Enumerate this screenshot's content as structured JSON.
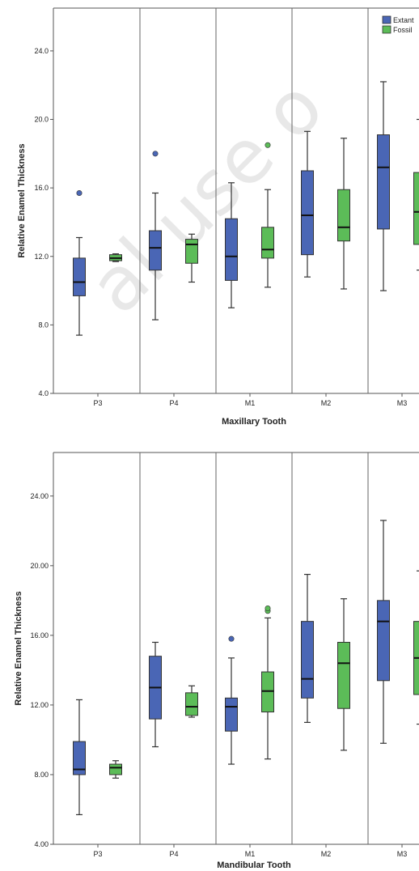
{
  "watermark_text": "al use o",
  "legend": [
    {
      "label": "Extant",
      "color": "#4a66b5"
    },
    {
      "label": "Fossil",
      "color": "#5cbc58"
    }
  ],
  "chart_data": [
    {
      "type": "box",
      "xlabel": "Maxillary Tooth",
      "ylabel": "Relative Enamel Thickness",
      "ylim": [
        4,
        26.5
      ],
      "yticks": [
        4,
        8,
        12,
        16,
        20,
        24
      ],
      "ytick_labels": [
        "4.0",
        "8.0",
        "12.0",
        "16.0",
        "20.0",
        "24.0"
      ],
      "categories": [
        "P3",
        "P4",
        "M1",
        "M2",
        "M3"
      ],
      "grid": false,
      "legend_position": "top-right",
      "series": [
        {
          "name": "Extant",
          "color": "#4a66b5",
          "boxes": [
            {
              "min": 7.4,
              "q1": 9.7,
              "median": 10.5,
              "q3": 11.9,
              "max": 13.1,
              "outliers": [
                15.7
              ]
            },
            {
              "min": 8.3,
              "q1": 11.2,
              "median": 12.5,
              "q3": 13.5,
              "max": 15.7,
              "outliers": [
                18.0
              ]
            },
            {
              "min": 9.0,
              "q1": 10.6,
              "median": 12.0,
              "q3": 14.2,
              "max": 16.3,
              "outliers": []
            },
            {
              "min": 10.8,
              "q1": 12.1,
              "median": 14.4,
              "q3": 17.0,
              "max": 19.3,
              "outliers": []
            },
            {
              "min": 10.0,
              "q1": 13.6,
              "median": 17.2,
              "q3": 19.1,
              "max": 22.2,
              "outliers": []
            }
          ]
        },
        {
          "name": "Fossil",
          "color": "#5cbc58",
          "boxes": [
            {
              "min": 11.7,
              "q1": 11.75,
              "median": 11.9,
              "q3": 12.1,
              "max": 12.15,
              "outliers": []
            },
            {
              "min": 10.5,
              "q1": 11.6,
              "median": 12.7,
              "q3": 13.0,
              "max": 13.3,
              "outliers": []
            },
            {
              "min": 10.2,
              "q1": 11.9,
              "median": 12.4,
              "q3": 13.7,
              "max": 15.9,
              "outliers": [
                18.5
              ]
            },
            {
              "min": 10.1,
              "q1": 12.9,
              "median": 13.7,
              "q3": 15.9,
              "max": 18.9,
              "outliers": []
            },
            {
              "min": 11.2,
              "q1": 12.7,
              "median": 14.6,
              "q3": 16.9,
              "max": 20.0,
              "outliers": []
            }
          ]
        }
      ]
    },
    {
      "type": "box",
      "xlabel": "Mandibular Tooth",
      "ylabel": "Relative Enamel Thickness",
      "ylim": [
        4,
        26.5
      ],
      "yticks": [
        4,
        8,
        12,
        16,
        20,
        24
      ],
      "ytick_labels": [
        "4.00",
        "8.00",
        "12.00",
        "16.00",
        "20.00",
        "24.00"
      ],
      "categories": [
        "P3",
        "P4",
        "M1",
        "M2",
        "M3"
      ],
      "grid": false,
      "series": [
        {
          "name": "Extant",
          "color": "#4a66b5",
          "boxes": [
            {
              "min": 5.7,
              "q1": 8.0,
              "median": 8.3,
              "q3": 9.9,
              "max": 12.3,
              "outliers": []
            },
            {
              "min": 9.6,
              "q1": 11.2,
              "median": 13.0,
              "q3": 14.8,
              "max": 15.6,
              "outliers": []
            },
            {
              "min": 8.6,
              "q1": 10.5,
              "median": 11.9,
              "q3": 12.4,
              "max": 14.7,
              "outliers": [
                15.8
              ]
            },
            {
              "min": 11.0,
              "q1": 12.4,
              "median": 13.5,
              "q3": 16.8,
              "max": 19.5,
              "outliers": []
            },
            {
              "min": 9.8,
              "q1": 13.4,
              "median": 16.8,
              "q3": 18.0,
              "max": 22.6,
              "outliers": []
            }
          ]
        },
        {
          "name": "Fossil",
          "color": "#5cbc58",
          "boxes": [
            {
              "min": 7.8,
              "q1": 8.0,
              "median": 8.4,
              "q3": 8.6,
              "max": 8.8,
              "outliers": []
            },
            {
              "min": 11.3,
              "q1": 11.4,
              "median": 11.9,
              "q3": 12.7,
              "max": 13.1,
              "outliers": []
            },
            {
              "min": 8.9,
              "q1": 11.6,
              "median": 12.8,
              "q3": 13.9,
              "max": 17.0,
              "outliers": [
                17.4,
                17.55
              ]
            },
            {
              "min": 9.4,
              "q1": 11.8,
              "median": 14.4,
              "q3": 15.6,
              "max": 18.1,
              "outliers": []
            },
            {
              "min": 10.9,
              "q1": 12.6,
              "median": 14.7,
              "q3": 16.8,
              "max": 19.7,
              "outliers": []
            }
          ]
        }
      ]
    }
  ]
}
